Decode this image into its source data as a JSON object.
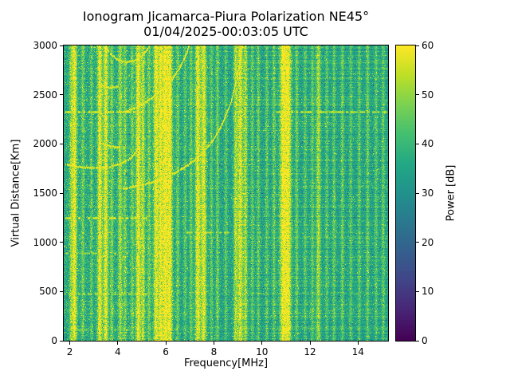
{
  "chart_data": {
    "type": "heatmap",
    "title_line1": "Ionogram Jicamarca-Piura Polarization NE45°",
    "title_line2": "01/04/2025-00:03:05 UTC",
    "xlabel": "Frequency[MHz]",
    "ylabel": "Virtual Distance[Km]",
    "colorbar_label": "Power [dB]",
    "colormap": "viridis",
    "xlim": [
      1.75,
      15.25
    ],
    "ylim": [
      0,
      3000
    ],
    "clim": [
      0,
      60
    ],
    "xticks": [
      2,
      4,
      6,
      8,
      10,
      12,
      14
    ],
    "yticks": [
      0,
      500,
      1000,
      1500,
      2000,
      2500,
      3000
    ],
    "colorbar_ticks": [
      0,
      10,
      20,
      30,
      40,
      50,
      60
    ],
    "viridis_stops": [
      [
        0.0,
        "#440154"
      ],
      [
        0.1,
        "#482475"
      ],
      [
        0.2,
        "#414487"
      ],
      [
        0.3,
        "#355f8d"
      ],
      [
        0.4,
        "#2a788e"
      ],
      [
        0.5,
        "#21918c"
      ],
      [
        0.6,
        "#22a884"
      ],
      [
        0.7,
        "#44bf70"
      ],
      [
        0.8,
        "#7ad151"
      ],
      [
        0.9,
        "#bddf26"
      ],
      [
        1.0,
        "#fde725"
      ]
    ],
    "noise": {
      "mean_db": 34,
      "spread_db": 7.5,
      "bright_speckle_max_db": 52,
      "dark_speckle_min_db": 18
    },
    "rfi_lines_format": "[freq_MHz, peak_power_dB, sigma_MHz]",
    "rfi_lines": [
      [
        2.2,
        58,
        0.07
      ],
      [
        2.05,
        46,
        0.05
      ],
      [
        2.55,
        45,
        0.05
      ],
      [
        2.9,
        44,
        0.04
      ],
      [
        3.25,
        58,
        0.07
      ],
      [
        3.5,
        57,
        0.07
      ],
      [
        3.75,
        46,
        0.05
      ],
      [
        4.1,
        50,
        0.06
      ],
      [
        4.3,
        46,
        0.05
      ],
      [
        4.6,
        45,
        0.05
      ],
      [
        4.85,
        58,
        0.07
      ],
      [
        5.05,
        52,
        0.06
      ],
      [
        5.3,
        46,
        0.05
      ],
      [
        5.6,
        58,
        0.08
      ],
      [
        5.78,
        52,
        0.05
      ],
      [
        5.97,
        60,
        0.1
      ],
      [
        6.18,
        56,
        0.07
      ],
      [
        6.5,
        46,
        0.05
      ],
      [
        6.8,
        44,
        0.05
      ],
      [
        7.05,
        46,
        0.05
      ],
      [
        7.33,
        59,
        0.08
      ],
      [
        7.58,
        58,
        0.08
      ],
      [
        7.9,
        45,
        0.05
      ],
      [
        8.15,
        47,
        0.05
      ],
      [
        8.5,
        44,
        0.05
      ],
      [
        8.9,
        52,
        0.06
      ],
      [
        9.1,
        57,
        0.08
      ],
      [
        9.32,
        52,
        0.06
      ],
      [
        9.6,
        45,
        0.05
      ],
      [
        9.85,
        46,
        0.05
      ],
      [
        10.2,
        45,
        0.05
      ],
      [
        10.5,
        46,
        0.05
      ],
      [
        10.88,
        60,
        0.1
      ],
      [
        11.1,
        59,
        0.09
      ],
      [
        11.45,
        46,
        0.05
      ],
      [
        11.8,
        44,
        0.05
      ],
      [
        12.1,
        45,
        0.05
      ],
      [
        12.35,
        52,
        0.07
      ],
      [
        12.7,
        44,
        0.05
      ],
      [
        13.0,
        45,
        0.05
      ],
      [
        13.35,
        46,
        0.05
      ],
      [
        13.7,
        44,
        0.05
      ],
      [
        14.05,
        45,
        0.05
      ],
      [
        14.4,
        46,
        0.05
      ],
      [
        14.75,
        44,
        0.05
      ],
      [
        15.05,
        45,
        0.05
      ]
    ],
    "echo_dashes_format": "[range_km, f_start_MHz, f_end_MHz, power_dB]",
    "echo_dashes": [
      [
        2330,
        1.8,
        4.7,
        56
      ],
      [
        2330,
        10.6,
        15.25,
        54
      ],
      [
        1250,
        1.8,
        5.3,
        57
      ],
      [
        890,
        1.8,
        4.4,
        50
      ],
      [
        480,
        1.8,
        5.3,
        53
      ],
      [
        110,
        2.2,
        4.6,
        48
      ],
      [
        1100,
        6.85,
        8.6,
        52
      ],
      [
        2110,
        7.3,
        8.05,
        50
      ],
      [
        1960,
        3.2,
        4.25,
        50
      ],
      [
        2580,
        3.1,
        3.95,
        50
      ]
    ],
    "traces": [
      {
        "name": "f-region-echo-first-hop",
        "echo": true,
        "seed": 11,
        "points": [
          [
            4.2,
            1545
          ],
          [
            4.7,
            1570
          ],
          [
            5.3,
            1605
          ],
          [
            5.9,
            1655
          ],
          [
            6.5,
            1725
          ],
          [
            7.0,
            1805
          ],
          [
            7.5,
            1905
          ],
          [
            7.95,
            2040
          ],
          [
            8.35,
            2210
          ],
          [
            8.7,
            2430
          ],
          [
            8.95,
            2670
          ],
          [
            9.1,
            2880
          ],
          [
            9.17,
            3000
          ]
        ]
      },
      {
        "name": "flat-echo-1780km",
        "echo": true,
        "seed": 23,
        "points": [
          [
            1.8,
            1795
          ],
          [
            2.2,
            1775
          ],
          [
            2.7,
            1762
          ],
          [
            3.2,
            1760
          ],
          [
            3.7,
            1772
          ],
          [
            4.1,
            1800
          ],
          [
            4.45,
            1845
          ],
          [
            4.7,
            1905
          ],
          [
            4.85,
            1975
          ]
        ]
      },
      {
        "name": "second-hop-echo",
        "echo": true,
        "seed": 37,
        "points": [
          [
            4.3,
            2325
          ],
          [
            4.8,
            2380
          ],
          [
            5.3,
            2450
          ],
          [
            5.8,
            2545
          ],
          [
            6.25,
            2660
          ],
          [
            6.6,
            2790
          ],
          [
            6.85,
            2920
          ],
          [
            6.95,
            3000
          ]
        ]
      },
      {
        "name": "top-arc-echo",
        "echo": false,
        "seed": 51,
        "points": [
          [
            3.45,
            3000
          ],
          [
            3.7,
            2915
          ],
          [
            4.0,
            2855
          ],
          [
            4.35,
            2830
          ],
          [
            4.75,
            2855
          ],
          [
            5.1,
            2925
          ],
          [
            5.3,
            3000
          ]
        ]
      },
      {
        "name": "small-arc-2580km",
        "echo": false,
        "seed": 63,
        "points": [
          [
            3.15,
            2625
          ],
          [
            3.45,
            2585
          ],
          [
            3.75,
            2572
          ],
          [
            4.0,
            2588
          ]
        ]
      },
      {
        "name": "short-echo-1975km",
        "echo": false,
        "seed": 71,
        "points": [
          [
            3.35,
            2005
          ],
          [
            3.7,
            1978
          ],
          [
            4.05,
            1968
          ]
        ]
      }
    ]
  }
}
